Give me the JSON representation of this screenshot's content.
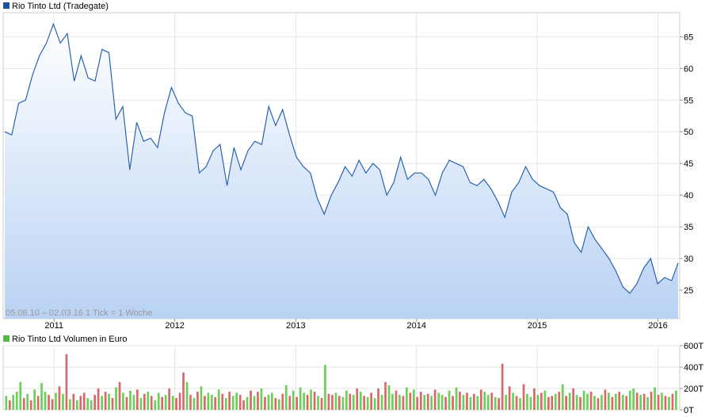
{
  "chart_data": [
    {
      "type": "area",
      "title": "Rio Tinto Ltd (Tradegate)",
      "legend_color": "#1f4f9e",
      "line_color": "#2a63b0",
      "annotation": "05.08.10 – 02.03.16   1 Tick = 1 Woche",
      "x_tick_labels": [
        "2011",
        "2012",
        "2013",
        "2014",
        "2015",
        "2016"
      ],
      "y_tick_labels": [
        "65",
        "60",
        "55",
        "50",
        "45",
        "40",
        "35",
        "30",
        "25"
      ],
      "y_ticks": [
        65,
        60,
        55,
        50,
        45,
        40,
        35,
        30,
        25
      ],
      "ylim": [
        20.5,
        68.8
      ],
      "x": [
        "2010-08-05",
        "2010-08-26",
        "2010-09-16",
        "2010-10-07",
        "2010-10-28",
        "2010-11-18",
        "2010-12-09",
        "2010-12-30",
        "2011-01-20",
        "2011-02-10",
        "2011-03-03",
        "2011-03-24",
        "2011-04-14",
        "2011-05-05",
        "2011-05-26",
        "2011-06-16",
        "2011-07-07",
        "2011-07-28",
        "2011-08-18",
        "2011-09-08",
        "2011-09-29",
        "2011-10-20",
        "2011-11-10",
        "2011-12-01",
        "2011-12-22",
        "2012-01-12",
        "2012-02-02",
        "2012-02-23",
        "2012-03-15",
        "2012-04-05",
        "2012-04-26",
        "2012-05-17",
        "2012-06-07",
        "2012-06-28",
        "2012-07-19",
        "2012-08-09",
        "2012-08-30",
        "2012-09-20",
        "2012-10-11",
        "2012-11-01",
        "2012-11-22",
        "2012-12-13",
        "2013-01-03",
        "2013-01-24",
        "2013-02-14",
        "2013-03-07",
        "2013-03-28",
        "2013-04-18",
        "2013-05-09",
        "2013-05-30",
        "2013-06-20",
        "2013-07-11",
        "2013-08-01",
        "2013-08-22",
        "2013-09-12",
        "2013-10-03",
        "2013-10-24",
        "2013-11-14",
        "2013-12-05",
        "2013-12-26",
        "2014-01-16",
        "2014-02-06",
        "2014-02-27",
        "2014-03-20",
        "2014-04-10",
        "2014-05-01",
        "2014-05-22",
        "2014-06-12",
        "2014-07-03",
        "2014-07-24",
        "2014-08-14",
        "2014-09-04",
        "2014-09-25",
        "2014-10-16",
        "2014-11-06",
        "2014-11-27",
        "2014-12-18",
        "2015-01-08",
        "2015-01-29",
        "2015-02-19",
        "2015-03-12",
        "2015-04-02",
        "2015-04-23",
        "2015-05-14",
        "2015-06-04",
        "2015-06-25",
        "2015-07-16",
        "2015-08-06",
        "2015-08-27",
        "2015-09-17",
        "2015-10-08",
        "2015-10-29",
        "2015-11-19",
        "2015-12-10",
        "2015-12-31",
        "2016-01-21",
        "2016-02-11",
        "2016-03-02"
      ],
      "values": [
        50.0,
        49.5,
        54.5,
        55.0,
        59.0,
        62.0,
        64.0,
        67.0,
        64.0,
        65.5,
        58.0,
        62.0,
        58.5,
        58.0,
        63.0,
        62.5,
        52.0,
        54.0,
        44.0,
        51.5,
        48.5,
        49.0,
        47.5,
        53.0,
        57.0,
        54.5,
        53.0,
        52.5,
        43.5,
        44.5,
        47.0,
        48.0,
        41.5,
        47.5,
        44.0,
        47.0,
        48.5,
        48.0,
        54.0,
        51.0,
        53.5,
        49.5,
        46.0,
        44.5,
        43.5,
        39.5,
        37.0,
        40.0,
        42.0,
        44.5,
        43.0,
        45.5,
        43.5,
        45.0,
        44.0,
        40.0,
        42.0,
        46.0,
        42.5,
        43.5,
        43.5,
        42.5,
        40.0,
        43.5,
        45.5,
        45.0,
        44.5,
        42.0,
        41.5,
        42.5,
        41.0,
        39.0,
        36.5,
        40.5,
        42.0,
        44.5,
        42.5,
        41.5,
        41.0,
        40.5,
        38.0,
        37.0,
        32.5,
        31.0,
        35.0,
        33.0,
        31.5,
        30.0,
        28.0,
        25.5,
        24.5,
        26.0,
        28.5,
        30.0,
        26.0,
        27.0,
        26.5,
        29.3
      ]
    },
    {
      "type": "bar",
      "title": "Rio Tinto Ltd Volumen in Euro",
      "legend_color": "#55b845",
      "up_color": "#6ccf5a",
      "down_color": "#d9686a",
      "y_tick_labels": [
        "600T",
        "400T",
        "200T",
        "0T"
      ],
      "ylim": [
        0,
        600
      ],
      "values": [
        130,
        90,
        140,
        170,
        260,
        110,
        150,
        90,
        190,
        130,
        250,
        170,
        140,
        100,
        160,
        220,
        150,
        520,
        100,
        150,
        90,
        130,
        160,
        110,
        90,
        140,
        200,
        130,
        170,
        150,
        110,
        210,
        260,
        160,
        120,
        180,
        140,
        190,
        110,
        150,
        170,
        130,
        90,
        160,
        120,
        140,
        200,
        130,
        110,
        160,
        350,
        260,
        140,
        110,
        170,
        220,
        130,
        160,
        140,
        120,
        190,
        150,
        110,
        170,
        130,
        160,
        140,
        90,
        120,
        180,
        130,
        170,
        200,
        120,
        140,
        160,
        110,
        100,
        150,
        230,
        130,
        180,
        120,
        210,
        160,
        140,
        190,
        170,
        130,
        110,
        420,
        150,
        140,
        160,
        130,
        120,
        180,
        150,
        140,
        200,
        170,
        130,
        120,
        160,
        110,
        200,
        140,
        260,
        230,
        150,
        180,
        140,
        130,
        210,
        160,
        190,
        120,
        170,
        140,
        150,
        130,
        190,
        160,
        140,
        120,
        180,
        130,
        210,
        170,
        140,
        160,
        120,
        150,
        130,
        190,
        170,
        140,
        160,
        120,
        110,
        430,
        140,
        220,
        160,
        130,
        110,
        240,
        150,
        120,
        200,
        140,
        160,
        180,
        120,
        130,
        150,
        170,
        240,
        130,
        160,
        200,
        140,
        120,
        180,
        150,
        170,
        130,
        110,
        140,
        190,
        160,
        120,
        150,
        170,
        140,
        130,
        180,
        200,
        160,
        140,
        150,
        120,
        170,
        210,
        140,
        160,
        130,
        120,
        150,
        180
      ],
      "up": [
        1,
        0,
        1,
        1,
        1,
        0,
        1,
        0,
        1,
        0,
        1,
        1,
        0,
        0,
        1,
        0,
        1,
        0,
        1,
        0,
        1,
        0,
        0,
        1,
        1,
        0,
        0,
        1,
        0,
        1,
        0,
        1,
        0,
        1,
        0,
        1,
        1,
        0,
        1,
        0,
        1,
        0,
        1,
        1,
        0,
        1,
        0,
        1,
        0,
        0,
        0,
        1,
        0,
        1,
        0,
        1,
        0,
        1,
        1,
        0,
        1,
        0,
        1,
        0,
        1,
        1,
        0,
        0,
        1,
        0,
        1,
        0,
        1,
        0,
        1,
        1,
        0,
        1,
        0,
        1,
        0,
        1,
        0,
        1,
        1,
        0,
        1,
        0,
        1,
        0,
        1,
        0,
        0,
        1,
        0,
        1,
        1,
        0,
        1,
        0,
        1,
        0,
        1,
        0,
        1,
        0,
        1,
        0,
        1,
        1,
        0,
        1,
        0,
        1,
        0,
        1,
        0,
        0,
        1,
        0,
        1,
        0,
        1,
        1,
        0,
        1,
        0,
        1,
        0,
        1,
        0,
        1,
        0,
        1,
        0,
        1,
        1,
        0,
        1,
        0,
        0,
        1,
        0,
        1,
        0,
        1,
        0,
        1,
        1,
        0,
        1,
        0,
        1,
        0,
        0,
        1,
        0,
        1,
        0,
        1,
        0,
        1,
        0,
        1,
        1,
        0,
        1,
        0,
        1,
        0,
        1,
        0,
        1,
        0,
        1,
        0,
        1,
        1,
        0,
        1,
        0,
        1,
        0,
        1,
        0,
        1,
        0,
        1,
        0,
        1
      ]
    }
  ]
}
